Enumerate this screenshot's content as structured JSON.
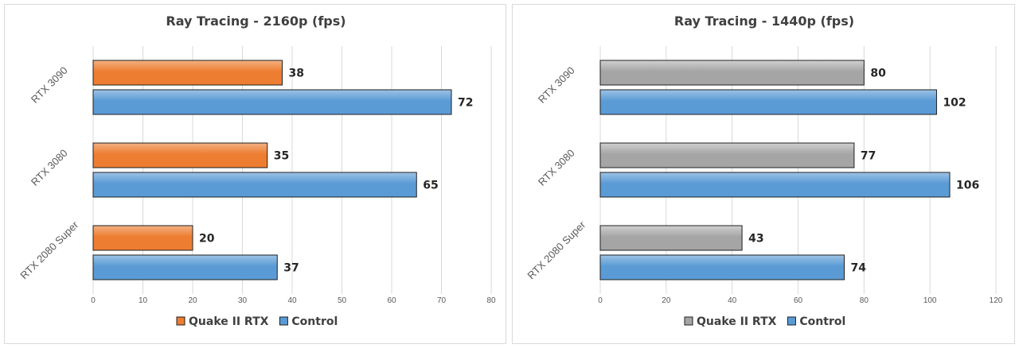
{
  "chart_data": [
    {
      "type": "bar",
      "orientation": "horizontal",
      "title": "Ray Tracing - 2160p (fps)",
      "categories": [
        "RTX 3090",
        "RTX 3080",
        "RTX 2080 Super"
      ],
      "series": [
        {
          "name": "Quake II RTX",
          "values": [
            38,
            35,
            20
          ],
          "color": "#ed7d31",
          "gradient_top": "#f4b183"
        },
        {
          "name": "Control",
          "values": [
            72,
            65,
            37
          ],
          "color": "#5b9bd5",
          "gradient_top": "#9dc3e6"
        }
      ],
      "xlim": [
        0,
        80
      ],
      "xticks": [
        "0",
        "10",
        "20",
        "30",
        "40",
        "50",
        "60",
        "70",
        "80"
      ],
      "grid": true,
      "legend_position": "bottom"
    },
    {
      "type": "bar",
      "orientation": "horizontal",
      "title": "Ray Tracing - 1440p (fps)",
      "categories": [
        "RTX 3090",
        "RTX 3080",
        "RTX 2080 Super"
      ],
      "series": [
        {
          "name": "Quake II RTX",
          "values": [
            80,
            77,
            43
          ],
          "color": "#a5a5a5",
          "gradient_top": "#d0d0d0"
        },
        {
          "name": "Control",
          "values": [
            102,
            106,
            74
          ],
          "color": "#5b9bd5",
          "gradient_top": "#9dc3e6"
        }
      ],
      "xlim": [
        0,
        120
      ],
      "xticks": [
        "0",
        "20",
        "40",
        "60",
        "80",
        "100",
        "120"
      ],
      "grid": true,
      "legend_position": "bottom"
    }
  ]
}
